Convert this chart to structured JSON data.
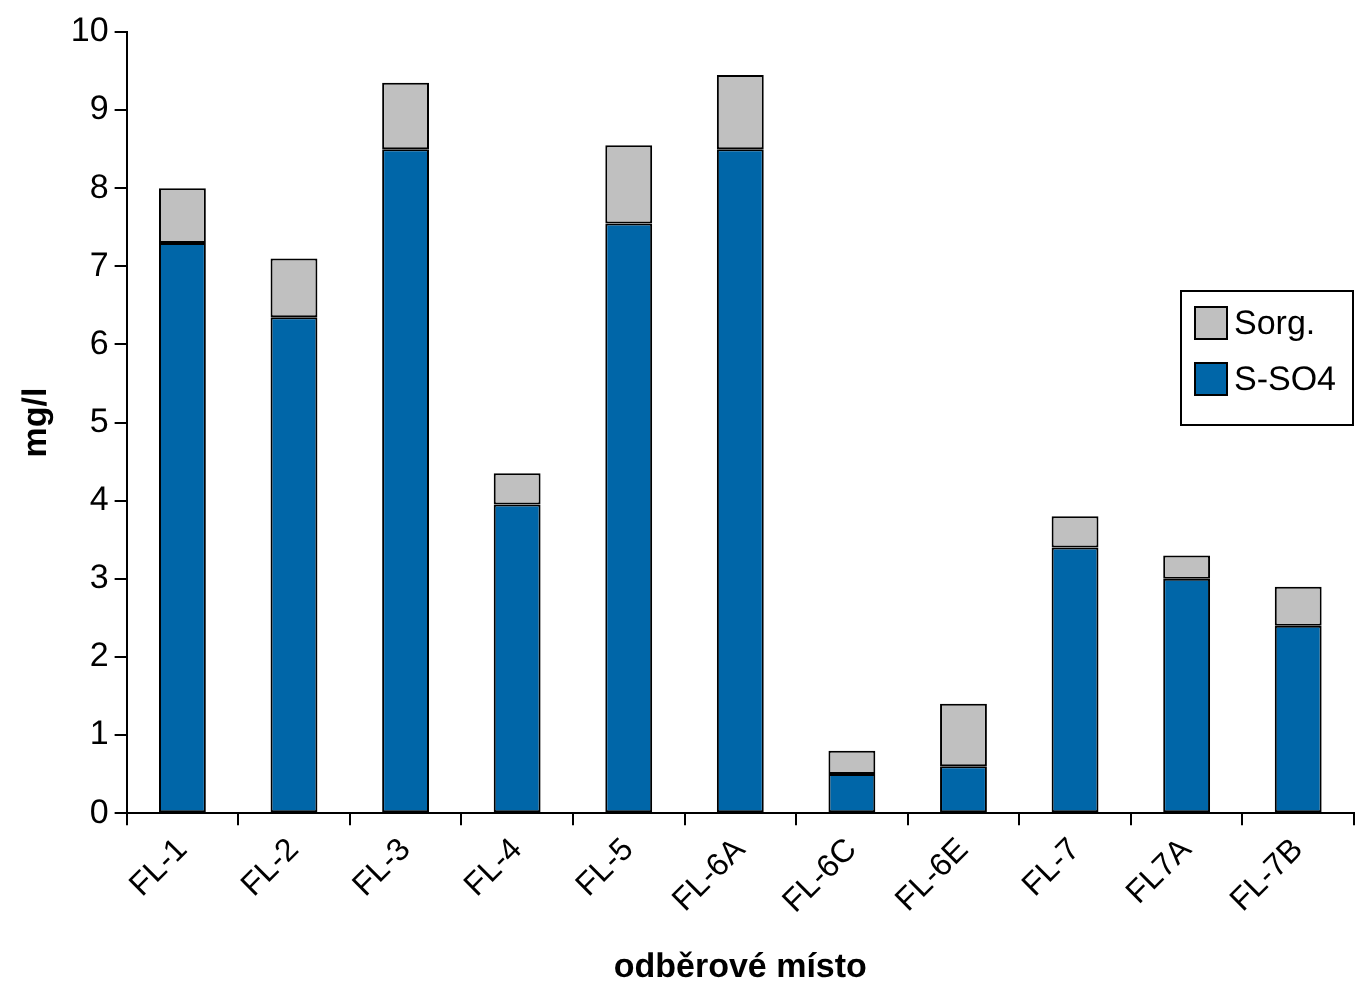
{
  "chart_data": {
    "type": "bar",
    "stacked": true,
    "xlabel": "odběrové místo",
    "ylabel": "mg/l",
    "categories": [
      "FL-1",
      "FL-2",
      "FL-3",
      "FL-4",
      "FL-5",
      "FL-6A",
      "FL-6C",
      "FL-6E",
      "FL-7",
      "FL7A",
      "FL-7B"
    ],
    "series": [
      {
        "name": "S-SO4",
        "color": "#0066a8",
        "values": [
          7.3,
          6.35,
          8.5,
          3.95,
          7.55,
          8.5,
          0.5,
          0.6,
          3.4,
          3.0,
          2.4
        ]
      },
      {
        "name": "Sorg.",
        "color": "#c0c0c0",
        "values": [
          0.7,
          0.75,
          0.85,
          0.4,
          1.0,
          0.95,
          0.3,
          0.8,
          0.4,
          0.3,
          0.5
        ]
      }
    ],
    "ylim": [
      0,
      10
    ],
    "yticks": [
      0,
      1,
      2,
      3,
      4,
      5,
      6,
      7,
      8,
      9,
      10
    ],
    "grid": false,
    "legend": "right"
  }
}
